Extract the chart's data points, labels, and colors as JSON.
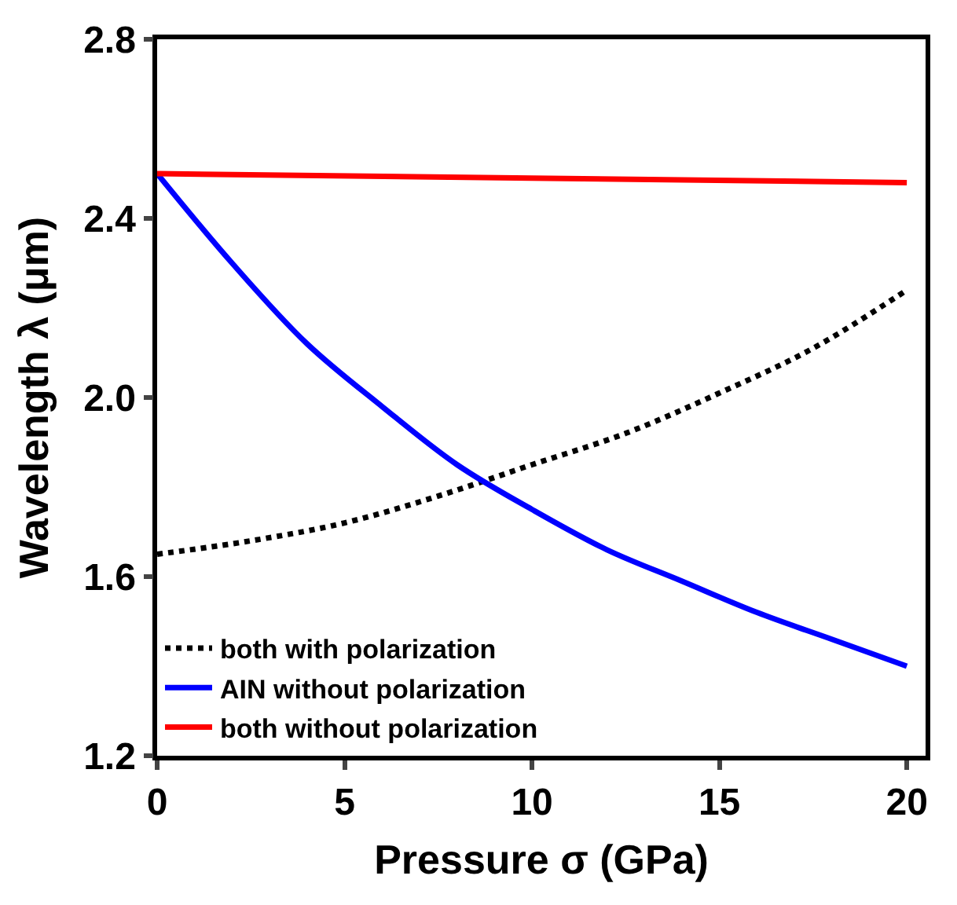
{
  "chart_data": {
    "type": "line",
    "xlabel": "Pressure σ (GPa)",
    "ylabel": "Wavelength λ (μm)",
    "xlim": [
      0,
      20.5
    ],
    "ylim": [
      1.2,
      2.8
    ],
    "xticks": [
      0,
      5,
      10,
      15,
      20
    ],
    "yticks": [
      {
        "value": 1.2,
        "label": "1.2"
      },
      {
        "value": 1.6,
        "label": "1.6"
      },
      {
        "value": 2.0,
        "label": "2.0"
      },
      {
        "value": 2.4,
        "label": "2.4"
      },
      {
        "value": 2.8,
        "label": "2.8"
      }
    ],
    "legend": "bottom left",
    "marker": "none",
    "series": [
      {
        "name": "both with polarization",
        "color": "#000000",
        "line_style": "dotted",
        "x": [
          0,
          2.5,
          5,
          7.5,
          10,
          12.5,
          15,
          17.5,
          20
        ],
        "values": [
          1.65,
          1.68,
          1.72,
          1.78,
          1.85,
          1.92,
          2.01,
          2.11,
          2.24
        ]
      },
      {
        "name": "AIN without polarization",
        "color": "#0000ff",
        "line_style": "solid",
        "x": [
          0,
          2,
          4,
          6,
          8,
          10,
          12,
          14,
          16,
          18,
          20
        ],
        "values": [
          2.5,
          2.3,
          2.12,
          1.98,
          1.85,
          1.75,
          1.66,
          1.59,
          1.52,
          1.46,
          1.4
        ]
      },
      {
        "name": "both without polarization",
        "color": "#ff0000",
        "line_style": "solid",
        "x": [
          0,
          10,
          20
        ],
        "values": [
          2.5,
          2.49,
          2.48
        ]
      }
    ]
  }
}
